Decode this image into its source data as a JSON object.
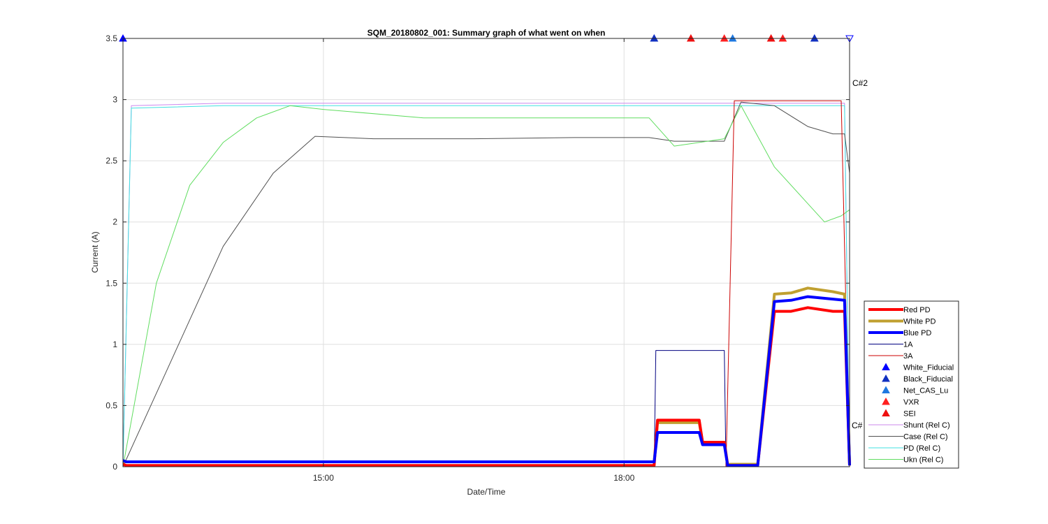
{
  "chart_data": {
    "type": "line",
    "title": "SQM_20180802_001: Summary graph of what went on when",
    "xlabel": "Date/Time",
    "ylabel": "Current (A)",
    "xlim": [
      "13:00",
      "20:15"
    ],
    "ylim": [
      0,
      3.5
    ],
    "x_ticks": [
      "15:00",
      "18:00"
    ],
    "y_ticks": [
      "0",
      "0.5",
      "1",
      "1.5",
      "2",
      "2.5",
      "3",
      "3.5"
    ],
    "grid": true,
    "legend_position": "right",
    "annotations": [
      "C#2",
      "C#"
    ],
    "series": [
      {
        "name": "Red PD",
        "color": "#ff0000",
        "width": 4,
        "x": [
          "13:00",
          "13:02",
          "18:18",
          "18:20",
          "18:45",
          "18:47",
          "19:00",
          "19:02",
          "19:20",
          "19:30",
          "19:40",
          "19:50",
          "20:05",
          "20:12",
          "20:15"
        ],
        "y": [
          0.02,
          0.01,
          0.01,
          0.38,
          0.38,
          0.2,
          0.2,
          0.01,
          0.01,
          1.27,
          1.27,
          1.3,
          1.27,
          1.27,
          0.01
        ]
      },
      {
        "name": "White PD",
        "color": "#c0a030",
        "width": 4,
        "x": [
          "13:00",
          "13:02",
          "18:18",
          "18:20",
          "18:45",
          "18:47",
          "19:00",
          "19:02",
          "19:20",
          "19:30",
          "19:40",
          "19:50",
          "20:05",
          "20:12",
          "20:15"
        ],
        "y": [
          0.04,
          0.04,
          0.04,
          0.36,
          0.36,
          0.2,
          0.2,
          0.02,
          0.02,
          1.41,
          1.42,
          1.46,
          1.43,
          1.41,
          0.02
        ]
      },
      {
        "name": "Blue PD",
        "color": "#0000ff",
        "width": 4,
        "x": [
          "13:00",
          "13:02",
          "18:18",
          "18:20",
          "18:45",
          "18:47",
          "19:00",
          "19:02",
          "19:20",
          "19:30",
          "19:40",
          "19:50",
          "20:05",
          "20:12",
          "20:15"
        ],
        "y": [
          0.05,
          0.04,
          0.04,
          0.28,
          0.28,
          0.18,
          0.18,
          0.01,
          0.01,
          1.35,
          1.36,
          1.39,
          1.37,
          1.36,
          0.01
        ]
      },
      {
        "name": "1A",
        "color": "#000080",
        "width": 1,
        "x": [
          "13:00",
          "18:18",
          "18:19",
          "19:00",
          "19:01",
          "20:15"
        ],
        "y": [
          0.0,
          0.0,
          0.95,
          0.95,
          0.0,
          0.0
        ]
      },
      {
        "name": "3A",
        "color": "#cc0000",
        "width": 1,
        "x": [
          "13:00",
          "19:01",
          "19:06",
          "20:10",
          "20:15"
        ],
        "y": [
          0.0,
          0.0,
          2.99,
          2.99,
          0.0
        ]
      },
      {
        "name": "Shunt (Rel C)",
        "color": "#cc88ee",
        "width": 1,
        "x": [
          "13:00",
          "13:05",
          "14:00",
          "16:00",
          "18:00",
          "19:00",
          "20:12",
          "20:15"
        ],
        "y": [
          0.0,
          2.95,
          2.97,
          2.97,
          2.97,
          2.97,
          2.97,
          0.0
        ]
      },
      {
        "name": "Case (Rel C)",
        "color": "#505050",
        "width": 1,
        "x": [
          "13:00",
          "13:30",
          "14:00",
          "14:30",
          "14:55",
          "15:30",
          "16:30",
          "17:30",
          "18:15",
          "18:30",
          "19:00",
          "19:10",
          "19:30",
          "19:50",
          "20:05",
          "20:12",
          "20:15"
        ],
        "y": [
          0.0,
          0.9,
          1.8,
          2.4,
          2.7,
          2.68,
          2.68,
          2.69,
          2.69,
          2.66,
          2.66,
          2.98,
          2.95,
          2.78,
          2.72,
          2.72,
          2.4
        ]
      },
      {
        "name": "PD (Rel C)",
        "color": "#40e0e0",
        "width": 1,
        "x": [
          "13:00",
          "13:05",
          "14:00",
          "16:00",
          "18:00",
          "19:00",
          "20:12",
          "20:15"
        ],
        "y": [
          0.0,
          2.93,
          2.95,
          2.95,
          2.95,
          2.95,
          2.95,
          0.0
        ]
      },
      {
        "name": "Ukn (Rel C)",
        "color": "#60dd60",
        "width": 1,
        "x": [
          "13:00",
          "13:20",
          "13:40",
          "14:00",
          "14:20",
          "14:40",
          "15:00",
          "16:00",
          "17:30",
          "18:15",
          "18:30",
          "19:00",
          "19:10",
          "19:30",
          "19:50",
          "20:00",
          "20:10",
          "20:15"
        ],
        "y": [
          0.0,
          1.5,
          2.3,
          2.65,
          2.85,
          2.95,
          2.92,
          2.85,
          2.85,
          2.85,
          2.62,
          2.68,
          2.95,
          2.45,
          2.15,
          2.0,
          2.05,
          2.1
        ]
      }
    ],
    "markers": [
      {
        "name": "White_Fiducial",
        "color": "#0000ff",
        "x": [
          "13:00",
          "18:18",
          "19:54"
        ],
        "y": [
          3.5,
          3.5,
          3.5
        ]
      },
      {
        "name": "Black_Fiducial",
        "color": "#1030c0",
        "x": [
          "18:18",
          "19:54"
        ],
        "y": [
          3.5,
          3.5
        ]
      },
      {
        "name": "Net_CAS_Lu",
        "color": "#1e78e0",
        "x": [
          "19:05"
        ],
        "y": [
          3.5
        ]
      },
      {
        "name": "VXR",
        "color": "#ff2020",
        "x": [
          "18:40",
          "19:00",
          "19:28",
          "19:35"
        ],
        "y": [
          3.5,
          3.5,
          3.5,
          3.5
        ]
      },
      {
        "name": "SEI",
        "color": "#ee1010",
        "x": [
          "18:40",
          "19:28"
        ],
        "y": [
          3.5,
          3.5
        ]
      }
    ]
  }
}
